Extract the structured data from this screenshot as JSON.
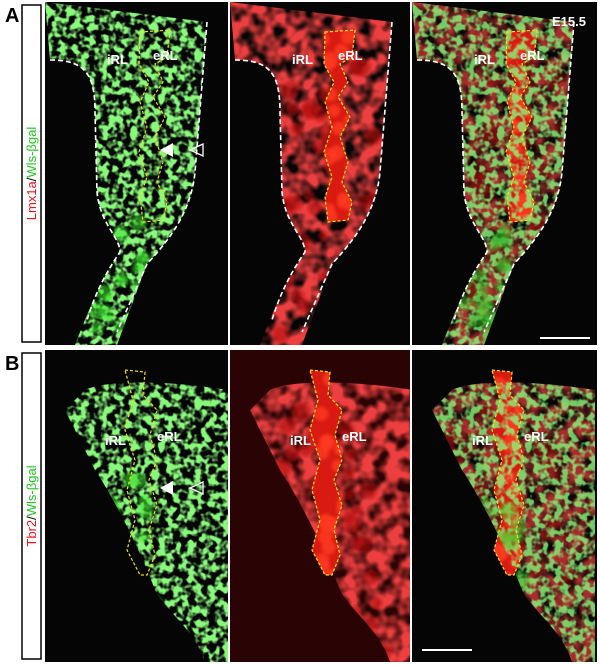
{
  "figure": {
    "rows": [
      {
        "letter": "A",
        "stain": {
          "red": "Lmx1a",
          "slash": "/",
          "green": "Wls-βgal"
        },
        "stage": "E15.5",
        "images": [
          {
            "irl": "iRL",
            "erl": "eRL"
          },
          {
            "irl": "iRL",
            "erl": "eRL"
          },
          {
            "irl": "iRL",
            "erl": "eRL"
          }
        ]
      },
      {
        "letter": "B",
        "stain": {
          "red": "Tbr2",
          "slash": "/",
          "green": "Wls-βgal"
        },
        "images": [
          {
            "irl": "iRL",
            "erl": "eRL"
          },
          {
            "irl": "iRL",
            "erl": "eRL"
          },
          {
            "irl": "iRL",
            "erl": "eRL"
          }
        ]
      }
    ]
  }
}
